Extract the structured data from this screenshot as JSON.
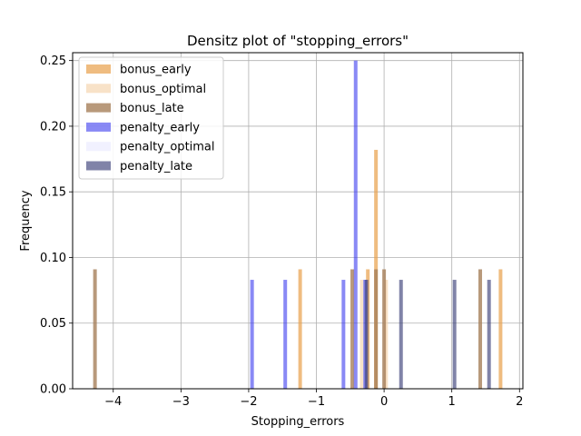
{
  "chart_data": {
    "type": "bar",
    "title": "Densitz plot of \"stopping_errors\"",
    "xlabel": "Stopping_errors",
    "ylabel": "Frequency",
    "xlim": [
      -4.6,
      2.05
    ],
    "ylim": [
      0,
      0.256
    ],
    "xticks": [
      -4,
      -3,
      -2,
      -1,
      0,
      1,
      2
    ],
    "xtick_labels": [
      "−4",
      "−3",
      "−2",
      "−1",
      "0",
      "1",
      "2"
    ],
    "yticks": [
      0,
      0.05,
      0.1,
      0.15,
      0.2,
      0.25
    ],
    "ytick_labels": [
      "0.00",
      "0.05",
      "0.10",
      "0.15",
      "0.20",
      "0.25"
    ],
    "grid": true,
    "legend_position": "top-left",
    "series": [
      {
        "name": "bonus_early",
        "color": "#e8a04a",
        "opacity": 0.7,
        "bars": [
          {
            "x": -1.24,
            "y": 0.091
          },
          {
            "x": -0.24,
            "y": 0.091
          },
          {
            "x": -0.12,
            "y": 0.182
          },
          {
            "x": 1.72,
            "y": 0.091
          }
        ]
      },
      {
        "name": "bonus_optimal",
        "color": "#f5d5b0",
        "opacity": 0.7,
        "bars": [
          {
            "x": -0.33,
            "y": 0.083
          },
          {
            "x": 0.03,
            "y": 0.083
          }
        ]
      },
      {
        "name": "bonus_late",
        "color": "#a67f5a",
        "opacity": 0.8,
        "bars": [
          {
            "x": -4.27,
            "y": 0.091
          },
          {
            "x": -0.47,
            "y": 0.091
          },
          {
            "x": -0.12,
            "y": 0.091
          },
          {
            "x": 0.0,
            "y": 0.091
          },
          {
            "x": 1.42,
            "y": 0.091
          }
        ]
      },
      {
        "name": "penalty_early",
        "color": "#3a3aee",
        "opacity": 0.6,
        "bars": [
          {
            "x": -1.95,
            "y": 0.083
          },
          {
            "x": -1.46,
            "y": 0.083
          },
          {
            "x": -0.6,
            "y": 0.083
          },
          {
            "x": -0.42,
            "y": 0.25
          },
          {
            "x": -0.28,
            "y": 0.083
          }
        ]
      },
      {
        "name": "penalty_optimal",
        "color": "#ebebff",
        "opacity": 0.7,
        "bars": []
      },
      {
        "name": "penalty_late",
        "color": "#3c4079",
        "opacity": 0.65,
        "bars": [
          {
            "x": -0.26,
            "y": 0.083
          },
          {
            "x": 0.25,
            "y": 0.083
          },
          {
            "x": 1.04,
            "y": 0.083
          },
          {
            "x": 1.55,
            "y": 0.083
          }
        ]
      }
    ]
  }
}
